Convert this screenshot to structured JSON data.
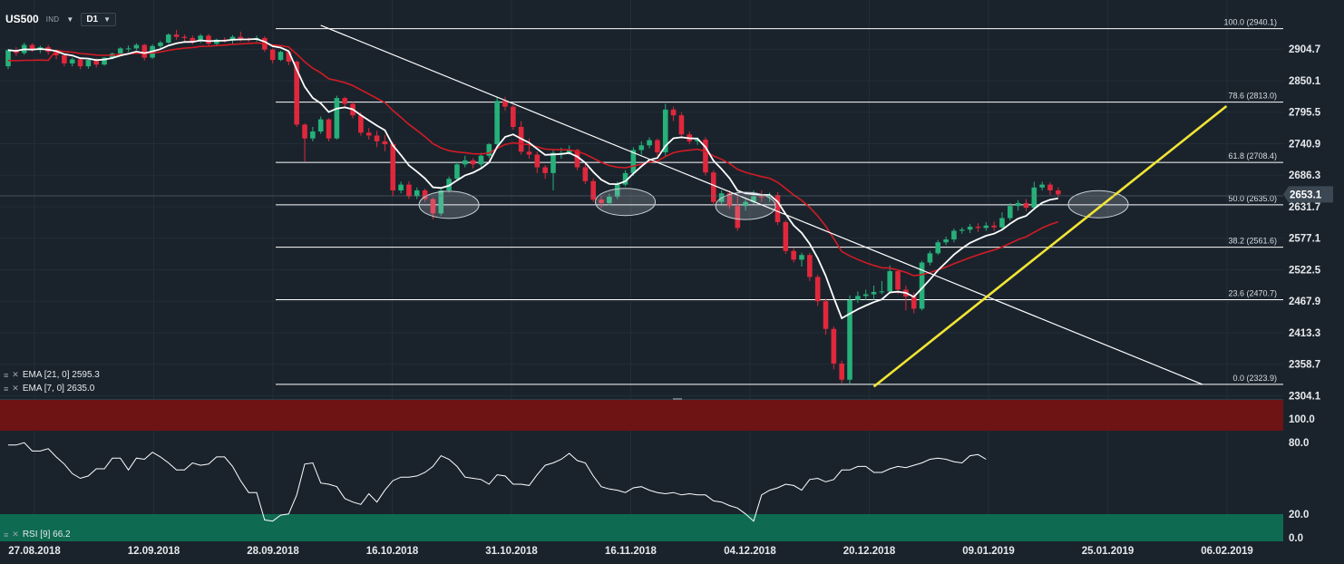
{
  "symbol": "US500",
  "instrument_type": "IND",
  "timeframe": "D1",
  "legend": {
    "ema21": "EMA [21, 0] 2595.3",
    "ema7": "EMA [7, 0] 2635.0",
    "rsi": "RSI [9] 66.2"
  },
  "colors": {
    "background": "#1a232c",
    "bull_candle": "#26b07a",
    "bear_candle": "#e0283c",
    "ema7": "#ffffff",
    "ema21": "#d21b24",
    "trendline": "#f2e534",
    "fib": "#ffffff",
    "rsi_overbought": "#6e1414",
    "rsi_oversold": "#0e6b51"
  },
  "chart_data": {
    "type": "candlestick",
    "price_axis": {
      "ticks": [
        2904.7,
        2850.1,
        2795.5,
        2740.9,
        2686.3,
        2631.7,
        2577.1,
        2522.5,
        2467.9,
        2413.3,
        2358.7,
        2304.1
      ],
      "current_price": 2653.1,
      "range": [
        2304.1,
        2960
      ]
    },
    "date_axis": {
      "labels": [
        "27.08.2018",
        "12.09.2018",
        "28.09.2018",
        "16.10.2018",
        "31.10.2018",
        "16.11.2018",
        "04.12.2018",
        "20.12.2018",
        "09.01.2019",
        "25.01.2019",
        "06.02.2019"
      ]
    },
    "fibonacci": [
      {
        "label": "100.0 (2940.1)",
        "price": 2940.1
      },
      {
        "label": "78.6 (2813.0)",
        "price": 2813.0
      },
      {
        "label": "61.8 (2708.4)",
        "price": 2708.4
      },
      {
        "label": "50.0 (2635.0)",
        "price": 2635.0
      },
      {
        "label": "38.2 (2561.6)",
        "price": 2561.6
      },
      {
        "label": "23.6 (2470.7)",
        "price": 2470.7
      },
      {
        "label": "0.0 (2323.9)",
        "price": 2323.9
      }
    ],
    "candles": [
      [
        2875,
        2903,
        2870,
        2905
      ],
      [
        2902,
        2898,
        2893,
        2908
      ],
      [
        2898,
        2912,
        2895,
        2916
      ],
      [
        2912,
        2903,
        2900,
        2915
      ],
      [
        2903,
        2908,
        2898,
        2911
      ],
      [
        2908,
        2900,
        2895,
        2912
      ],
      [
        2900,
        2894,
        2887,
        2903
      ],
      [
        2894,
        2880,
        2875,
        2897
      ],
      [
        2880,
        2887,
        2875,
        2890
      ],
      [
        2887,
        2875,
        2870,
        2889
      ],
      [
        2875,
        2886,
        2871,
        2888
      ],
      [
        2886,
        2878,
        2873,
        2889
      ],
      [
        2878,
        2890,
        2876,
        2891
      ],
      [
        2890,
        2897,
        2887,
        2899
      ],
      [
        2897,
        2906,
        2894,
        2908
      ],
      [
        2906,
        2906,
        2900,
        2911
      ],
      [
        2906,
        2912,
        2903,
        2915
      ],
      [
        2912,
        2890,
        2885,
        2914
      ],
      [
        2890,
        2910,
        2888,
        2913
      ],
      [
        2910,
        2916,
        2906,
        2919
      ],
      [
        2916,
        2930,
        2914,
        2932
      ],
      [
        2930,
        2926,
        2921,
        2938
      ],
      [
        2926,
        2924,
        2916,
        2930
      ],
      [
        2924,
        2918,
        2913,
        2928
      ],
      [
        2918,
        2928,
        2915,
        2931
      ],
      [
        2928,
        2914,
        2910,
        2931
      ],
      [
        2914,
        2921,
        2911,
        2923
      ],
      [
        2921,
        2920,
        2916,
        2925
      ],
      [
        2920,
        2926,
        2914,
        2929
      ],
      [
        2926,
        2923,
        2918,
        2935
      ],
      [
        2923,
        2922,
        2917,
        2925
      ],
      [
        2922,
        2924,
        2918,
        2928
      ],
      [
        2924,
        2904,
        2900,
        2927
      ],
      [
        2904,
        2886,
        2880,
        2906
      ],
      [
        2886,
        2900,
        2884,
        2902
      ],
      [
        2900,
        2883,
        2877,
        2902
      ],
      [
        2883,
        2774,
        2770,
        2885
      ],
      [
        2774,
        2750,
        2710,
        2776
      ],
      [
        2750,
        2762,
        2745,
        2770
      ],
      [
        2762,
        2783,
        2758,
        2788
      ],
      [
        2783,
        2750,
        2745,
        2785
      ],
      [
        2750,
        2820,
        2748,
        2824
      ],
      [
        2820,
        2810,
        2803,
        2822
      ],
      [
        2810,
        2790,
        2785,
        2813
      ],
      [
        2790,
        2760,
        2755,
        2795
      ],
      [
        2760,
        2755,
        2748,
        2768
      ],
      [
        2755,
        2745,
        2735,
        2763
      ],
      [
        2745,
        2740,
        2728,
        2756
      ],
      [
        2740,
        2660,
        2650,
        2744
      ],
      [
        2660,
        2670,
        2655,
        2675
      ],
      [
        2670,
        2650,
        2645,
        2676
      ],
      [
        2650,
        2660,
        2645,
        2665
      ],
      [
        2660,
        2645,
        2640,
        2663
      ],
      [
        2645,
        2620,
        2610,
        2647
      ],
      [
        2620,
        2660,
        2616,
        2665
      ],
      [
        2660,
        2680,
        2656,
        2684
      ],
      [
        2680,
        2705,
        2677,
        2710
      ],
      [
        2705,
        2712,
        2700,
        2720
      ],
      [
        2712,
        2705,
        2698,
        2716
      ],
      [
        2705,
        2720,
        2700,
        2725
      ],
      [
        2720,
        2740,
        2716,
        2742
      ],
      [
        2740,
        2815,
        2735,
        2822
      ],
      [
        2815,
        2805,
        2798,
        2822
      ],
      [
        2805,
        2770,
        2765,
        2808
      ],
      [
        2770,
        2727,
        2722,
        2780
      ],
      [
        2727,
        2722,
        2715,
        2750
      ],
      [
        2722,
        2700,
        2690,
        2727
      ],
      [
        2700,
        2690,
        2680,
        2704
      ],
      [
        2690,
        2725,
        2660,
        2730
      ],
      [
        2725,
        2725,
        2715,
        2734
      ],
      [
        2725,
        2730,
        2722,
        2738
      ],
      [
        2730,
        2700,
        2695,
        2732
      ],
      [
        2700,
        2676,
        2671,
        2706
      ],
      [
        2676,
        2644,
        2640,
        2681
      ],
      [
        2644,
        2638,
        2630,
        2650
      ],
      [
        2638,
        2649,
        2634,
        2654
      ],
      [
        2649,
        2670,
        2645,
        2675
      ],
      [
        2670,
        2690,
        2667,
        2695
      ],
      [
        2690,
        2730,
        2685,
        2735
      ],
      [
        2730,
        2738,
        2722,
        2745
      ],
      [
        2738,
        2747,
        2733,
        2752
      ],
      [
        2747,
        2726,
        2720,
        2750
      ],
      [
        2726,
        2800,
        2720,
        2810
      ],
      [
        2800,
        2790,
        2780,
        2805
      ],
      [
        2790,
        2757,
        2750,
        2795
      ],
      [
        2757,
        2745,
        2740,
        2762
      ],
      [
        2745,
        2748,
        2739,
        2752
      ],
      [
        2748,
        2691,
        2686,
        2752
      ],
      [
        2691,
        2640,
        2635,
        2695
      ],
      [
        2640,
        2655,
        2636,
        2660
      ],
      [
        2655,
        2633,
        2628,
        2660
      ],
      [
        2633,
        2595,
        2590,
        2650
      ],
      [
        2633,
        2640,
        2625,
        2645
      ],
      [
        2640,
        2650,
        2636,
        2660
      ],
      [
        2650,
        2648,
        2640,
        2660
      ],
      [
        2648,
        2652,
        2640,
        2656
      ],
      [
        2652,
        2605,
        2600,
        2657
      ],
      [
        2605,
        2555,
        2550,
        2608
      ],
      [
        2555,
        2540,
        2535,
        2560
      ],
      [
        2540,
        2548,
        2528,
        2552
      ],
      [
        2548,
        2510,
        2503,
        2552
      ],
      [
        2510,
        2468,
        2460,
        2514
      ],
      [
        2468,
        2420,
        2410,
        2472
      ],
      [
        2420,
        2360,
        2350,
        2424
      ],
      [
        2360,
        2332,
        2326,
        2365
      ],
      [
        2332,
        2470,
        2324,
        2478
      ],
      [
        2470,
        2477,
        2465,
        2485
      ],
      [
        2477,
        2480,
        2470,
        2488
      ],
      [
        2480,
        2484,
        2470,
        2495
      ],
      [
        2484,
        2485,
        2480,
        2503
      ],
      [
        2485,
        2520,
        2481,
        2530
      ],
      [
        2520,
        2488,
        2480,
        2522
      ],
      [
        2488,
        2476,
        2452,
        2495
      ],
      [
        2476,
        2455,
        2447,
        2483
      ],
      [
        2455,
        2535,
        2452,
        2538
      ],
      [
        2535,
        2551,
        2530,
        2555
      ],
      [
        2551,
        2570,
        2548,
        2574
      ],
      [
        2570,
        2575,
        2565,
        2580
      ],
      [
        2575,
        2590,
        2570,
        2594
      ],
      [
        2590,
        2592,
        2585,
        2596
      ],
      [
        2592,
        2597,
        2586,
        2602
      ],
      [
        2597,
        2595,
        2588,
        2603
      ],
      [
        2595,
        2599,
        2590,
        2605
      ],
      [
        2599,
        2596,
        2590,
        2606
      ],
      [
        2596,
        2612,
        2592,
        2622
      ],
      [
        2612,
        2633,
        2608,
        2638
      ],
      [
        2633,
        2638,
        2625,
        2643
      ],
      [
        2638,
        2630,
        2624,
        2645
      ],
      [
        2630,
        2665,
        2626,
        2675
      ],
      [
        2665,
        2670,
        2660,
        2675
      ],
      [
        2670,
        2660,
        2652,
        2674
      ],
      [
        2660,
        2653,
        2648,
        2665
      ]
    ],
    "ema7_label": "EMA [7, 0] 2635.0",
    "ema21_label": "EMA [21, 0] 2595.3",
    "trendlines": [
      {
        "from_index": 39,
        "from_price": 2946,
        "to_index": 149,
        "to_price": 2323.9
      },
      {
        "from_index": 108,
        "from_price": 2320,
        "to_index": 152,
        "to_price": 2806
      }
    ],
    "highlight_zones": [
      {
        "index": 55,
        "price": 2635
      },
      {
        "index": 77,
        "price": 2640
      },
      {
        "index": 92,
        "price": 2633
      },
      {
        "index": 136,
        "price": 2636
      }
    ],
    "rsi": {
      "label": "RSI [9] 66.2",
      "ticks": [
        100.0,
        80.0,
        20.0,
        0.0
      ],
      "overbought": 80,
      "oversold": 20,
      "values": [
        78,
        78,
        80,
        73,
        73,
        75,
        68,
        62,
        54,
        50,
        52,
        58,
        58,
        67,
        67,
        57,
        67,
        66,
        72,
        68,
        63,
        57,
        57,
        63,
        61,
        62,
        68,
        68,
        60,
        48,
        38,
        38,
        15,
        14,
        19,
        20,
        36,
        62,
        63,
        46,
        45,
        43,
        33,
        30,
        28,
        37,
        30,
        40,
        48,
        51,
        51,
        52,
        55,
        60,
        69,
        66,
        60,
        51,
        50,
        49,
        45,
        53,
        52,
        45,
        45,
        44,
        53,
        61,
        63,
        66,
        71,
        65,
        63,
        52,
        43,
        41,
        40,
        38,
        42,
        43,
        40,
        38,
        37,
        38,
        36,
        37,
        36,
        36,
        31,
        30,
        27,
        25,
        20,
        14,
        36,
        40,
        42,
        45,
        44,
        40,
        49,
        50,
        47,
        49,
        57,
        57,
        60,
        60,
        55,
        55,
        58,
        60,
        59,
        61,
        63,
        66,
        67,
        66,
        64,
        63,
        69,
        70,
        66
      ]
    }
  }
}
